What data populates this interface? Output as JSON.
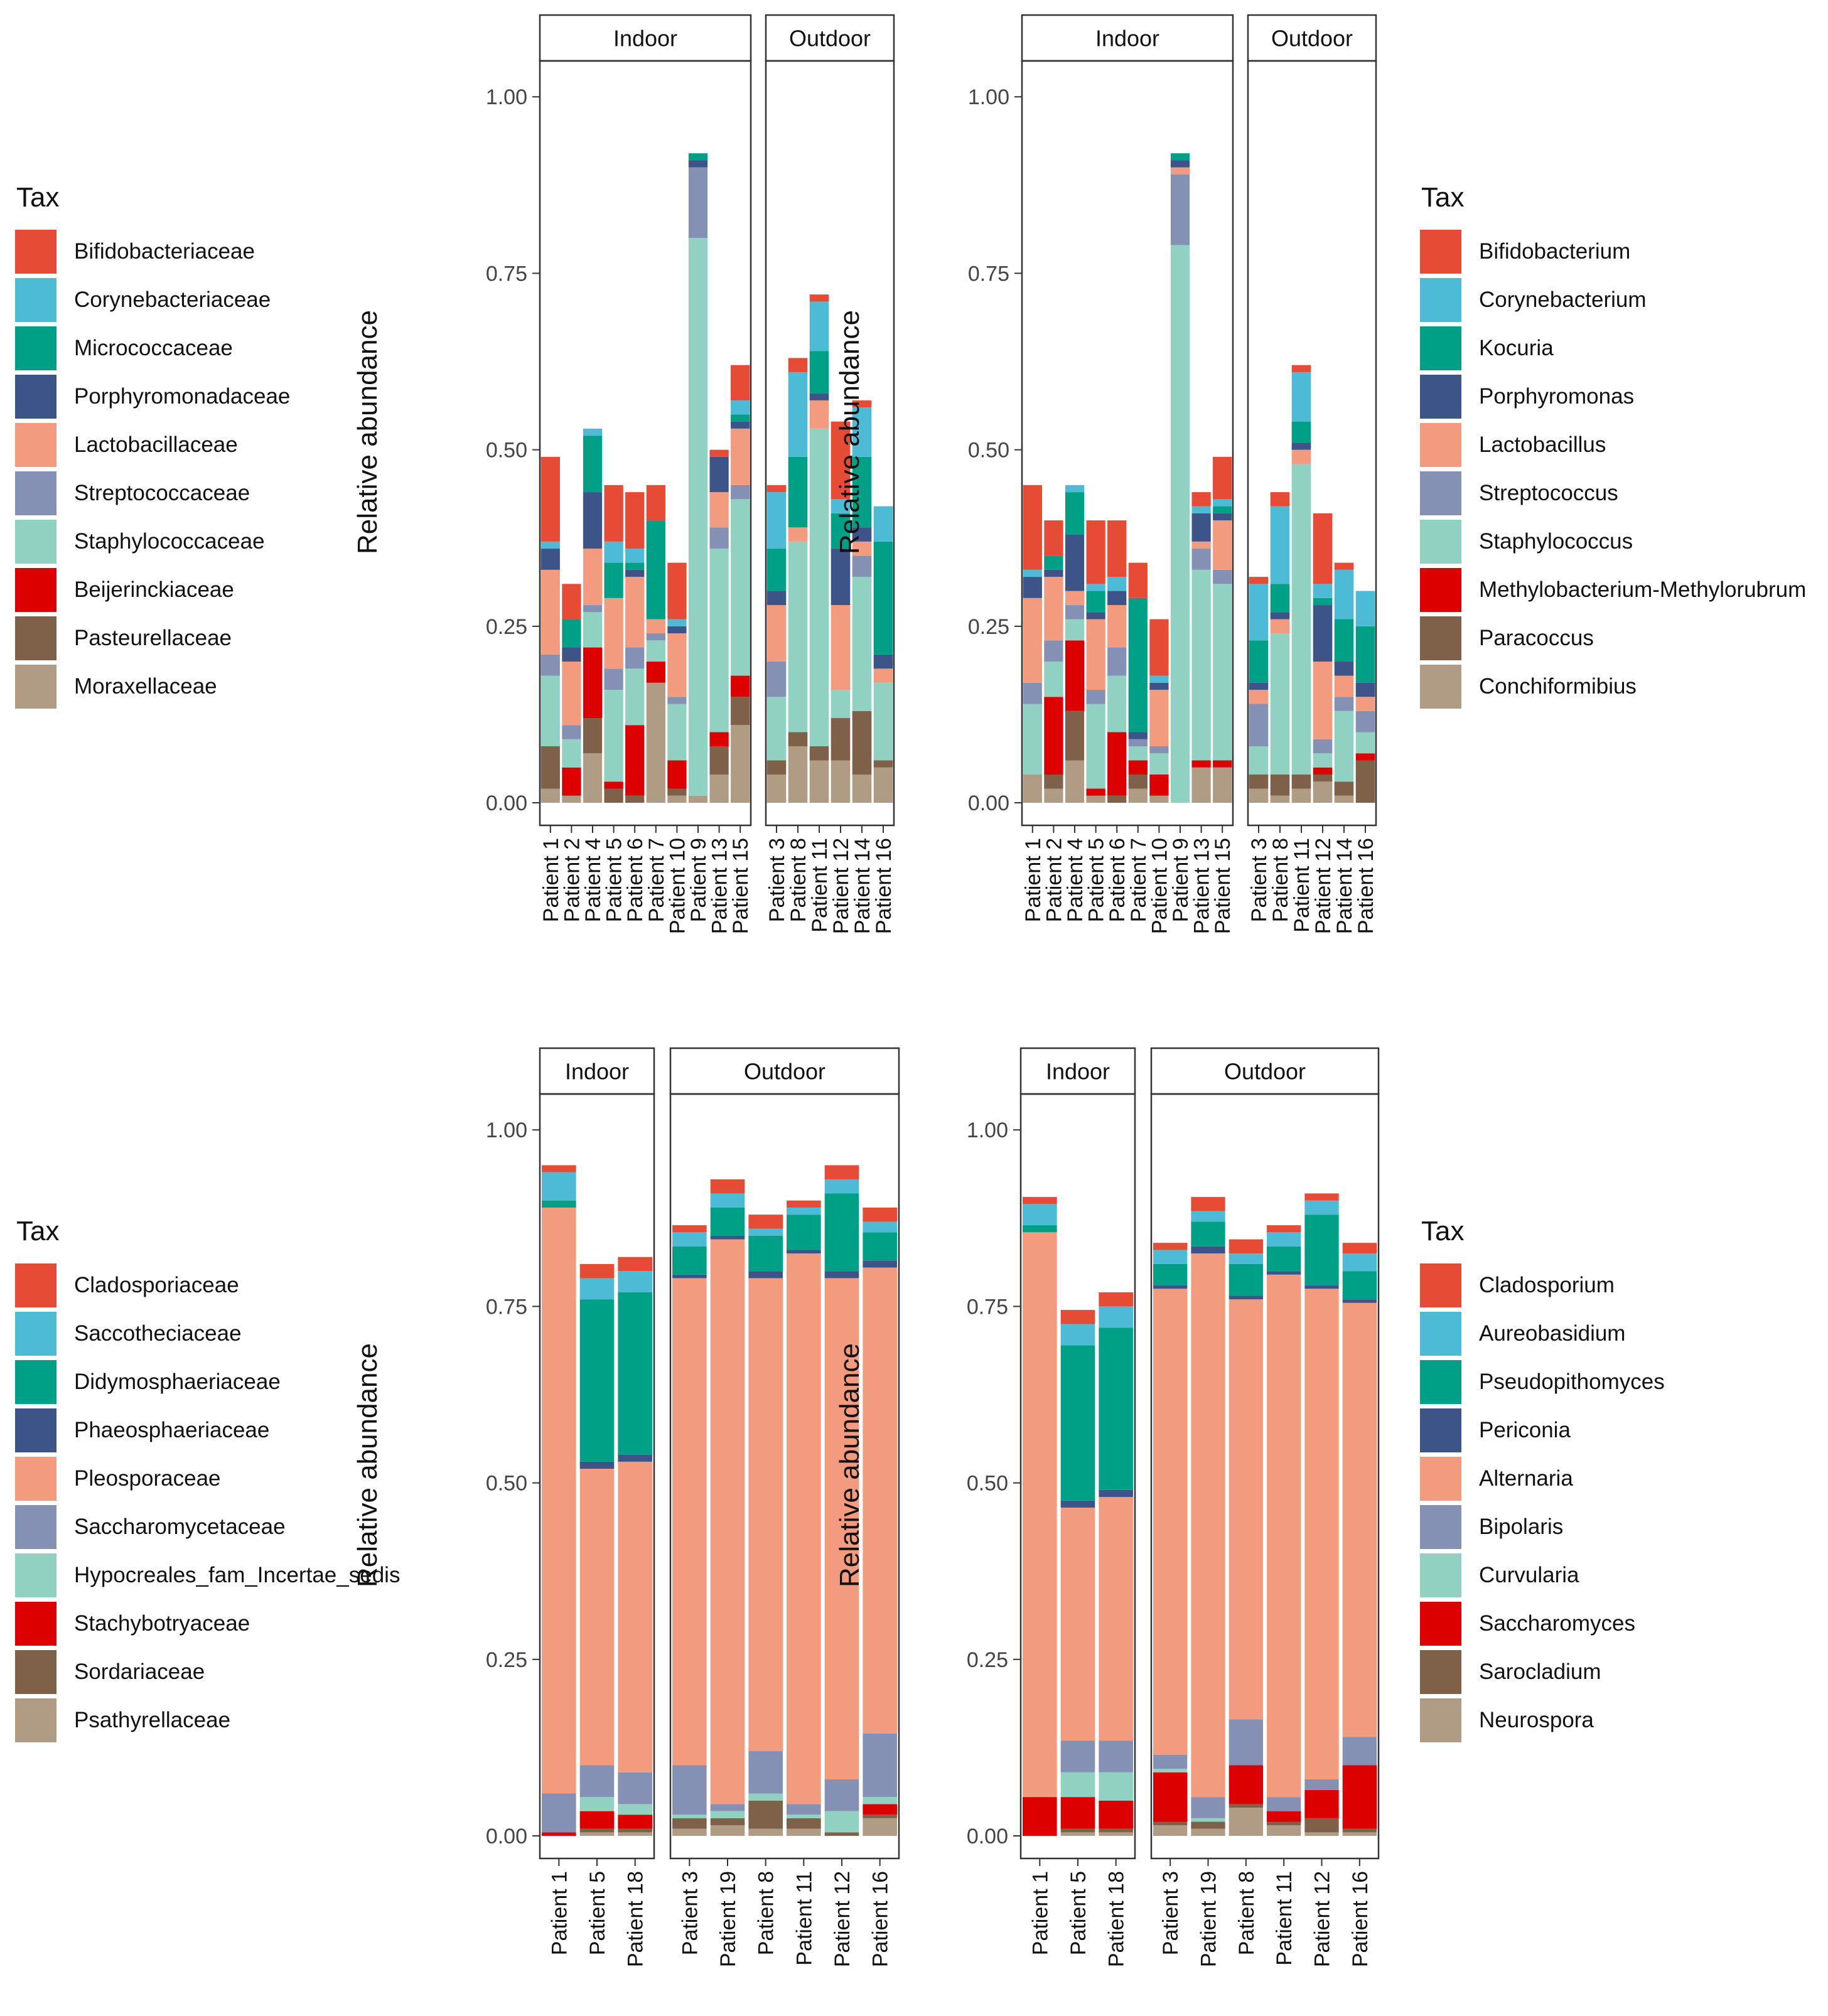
{
  "palette": [
    "#E64B35",
    "#4DBBD5",
    "#00A087",
    "#3C5488",
    "#F39B7F",
    "#8491B4",
    "#91D1C2",
    "#DC0000",
    "#7E6148",
    "#B09C85"
  ],
  "chart_data": [
    {
      "type": "bar",
      "stacked": true,
      "ylabel": "Relative abundance",
      "ylim": [
        0,
        1.05
      ],
      "yticks": [
        "0.00",
        "0.25",
        "0.50",
        "0.75",
        "1.00"
      ],
      "legend_title": "Tax",
      "legend_position": "left",
      "taxa": [
        "Bifidobacteriaceae",
        "Corynebacteriaceae",
        "Micrococcaceae",
        "Porphyromonadaceae",
        "Lactobacillaceae",
        "Streptococcaceae",
        "Staphylococcaceae",
        "Beijerinckiaceae",
        "Pasteurellaceae",
        "Moraxellaceae"
      ],
      "facets": [
        {
          "label": "Indoor",
          "categories": [
            "Patient 1",
            "Patient 2",
            "Patient 4",
            "Patient 5",
            "Patient 6",
            "Patient 7",
            "Patient 10",
            "Patient 9",
            "Patient 13",
            "Patient 15"
          ],
          "values": [
            [
              0.12,
              0.01,
              0.0,
              0.03,
              0.12,
              0.03,
              0.1,
              0.0,
              0.06,
              0.02
            ],
            [
              0.05,
              0.0,
              0.04,
              0.02,
              0.09,
              0.02,
              0.04,
              0.04,
              0.0,
              0.01
            ],
            [
              0.0,
              0.01,
              0.08,
              0.08,
              0.08,
              0.01,
              0.05,
              0.1,
              0.05,
              0.07
            ],
            [
              0.08,
              0.03,
              0.05,
              0.0,
              0.1,
              0.03,
              0.13,
              0.01,
              0.02,
              0.0
            ],
            [
              0.08,
              0.02,
              0.01,
              0.01,
              0.1,
              0.03,
              0.08,
              0.1,
              0.01,
              0.0
            ],
            [
              0.05,
              0.0,
              0.14,
              0.0,
              0.02,
              0.01,
              0.03,
              0.03,
              0.0,
              0.17
            ],
            [
              0.08,
              0.01,
              0.0,
              0.01,
              0.09,
              0.01,
              0.08,
              0.04,
              0.01,
              0.01
            ],
            [
              0.0,
              0.0,
              0.01,
              0.01,
              0.0,
              0.1,
              0.79,
              0.0,
              0.0,
              0.01
            ],
            [
              0.01,
              0.0,
              0.0,
              0.05,
              0.05,
              0.03,
              0.26,
              0.02,
              0.04,
              0.04
            ],
            [
              0.05,
              0.02,
              0.01,
              0.01,
              0.08,
              0.02,
              0.25,
              0.03,
              0.04,
              0.11
            ]
          ]
        },
        {
          "label": "Outdoor",
          "categories": [
            "Patient 3",
            "Patient 8",
            "Patient 11",
            "Patient 12",
            "Patient 14",
            "Patient 16"
          ],
          "values": [
            [
              0.01,
              0.08,
              0.06,
              0.02,
              0.08,
              0.05,
              0.09,
              0.0,
              0.02,
              0.04
            ],
            [
              0.02,
              0.12,
              0.1,
              0.0,
              0.02,
              0.0,
              0.27,
              0.0,
              0.02,
              0.08
            ],
            [
              0.01,
              0.07,
              0.06,
              0.01,
              0.04,
              0.0,
              0.45,
              0.0,
              0.02,
              0.06
            ],
            [
              0.11,
              0.02,
              0.05,
              0.08,
              0.12,
              0.0,
              0.04,
              0.0,
              0.06,
              0.06
            ],
            [
              0.01,
              0.07,
              0.1,
              0.02,
              0.02,
              0.03,
              0.19,
              0.0,
              0.09,
              0.04
            ],
            [
              0.0,
              0.05,
              0.16,
              0.02,
              0.02,
              0.0,
              0.11,
              0.0,
              0.01,
              0.05
            ]
          ]
        }
      ]
    },
    {
      "type": "bar",
      "stacked": true,
      "ylabel": "Relative abundance",
      "ylim": [
        0,
        1.05
      ],
      "yticks": [
        "0.00",
        "0.25",
        "0.50",
        "0.75",
        "1.00"
      ],
      "legend_title": "Tax",
      "legend_position": "right",
      "taxa": [
        "Bifidobacterium",
        "Corynebacterium",
        "Kocuria",
        "Porphyromonas",
        "Lactobacillus",
        "Streptococcus",
        "Staphylococcus",
        "Methylobacterium-Methylorubrum",
        "Paracoccus",
        "Conchiformibius"
      ],
      "facets": [
        {
          "label": "Indoor",
          "categories": [
            "Patient 1",
            "Patient 2",
            "Patient 4",
            "Patient 5",
            "Patient 6",
            "Patient 7",
            "Patient 10",
            "Patient 9",
            "Patient 13",
            "Patient 15"
          ],
          "values": [
            [
              0.12,
              0.01,
              0.0,
              0.03,
              0.12,
              0.03,
              0.1,
              0.0,
              0.0,
              0.04
            ],
            [
              0.05,
              0.0,
              0.02,
              0.01,
              0.09,
              0.03,
              0.05,
              0.11,
              0.02,
              0.02
            ],
            [
              0.0,
              0.01,
              0.06,
              0.08,
              0.02,
              0.02,
              0.03,
              0.1,
              0.07,
              0.06
            ],
            [
              0.09,
              0.01,
              0.03,
              0.01,
              0.1,
              0.02,
              0.12,
              0.01,
              0.0,
              0.01
            ],
            [
              0.08,
              0.02,
              0.0,
              0.02,
              0.06,
              0.04,
              0.08,
              0.09,
              0.01,
              0.0
            ],
            [
              0.05,
              0.0,
              0.19,
              0.01,
              0.0,
              0.01,
              0.02,
              0.02,
              0.02,
              0.02
            ],
            [
              0.08,
              0.01,
              0.0,
              0.01,
              0.08,
              0.01,
              0.03,
              0.03,
              0.0,
              0.01
            ],
            [
              0.0,
              0.0,
              0.01,
              0.01,
              0.01,
              0.1,
              0.79,
              0.0,
              0.0,
              0.0
            ],
            [
              0.02,
              0.01,
              0.0,
              0.04,
              0.01,
              0.03,
              0.27,
              0.01,
              0.0,
              0.05
            ],
            [
              0.06,
              0.01,
              0.01,
              0.01,
              0.07,
              0.02,
              0.25,
              0.01,
              0.0,
              0.05
            ]
          ]
        },
        {
          "label": "Outdoor",
          "categories": [
            "Patient 3",
            "Patient 8",
            "Patient 11",
            "Patient 12",
            "Patient 14",
            "Patient 16"
          ],
          "values": [
            [
              0.01,
              0.08,
              0.06,
              0.01,
              0.02,
              0.06,
              0.04,
              0.0,
              0.02,
              0.02
            ],
            [
              0.02,
              0.11,
              0.04,
              0.01,
              0.02,
              0.0,
              0.2,
              0.0,
              0.03,
              0.01
            ],
            [
              0.01,
              0.07,
              0.03,
              0.01,
              0.02,
              0.0,
              0.44,
              0.0,
              0.02,
              0.02
            ],
            [
              0.1,
              0.02,
              0.01,
              0.08,
              0.11,
              0.02,
              0.02,
              0.01,
              0.01,
              0.03
            ],
            [
              0.01,
              0.07,
              0.06,
              0.02,
              0.03,
              0.02,
              0.1,
              0.0,
              0.02,
              0.01
            ],
            [
              0.0,
              0.05,
              0.08,
              0.02,
              0.02,
              0.03,
              0.03,
              0.01,
              0.06,
              0.0
            ]
          ]
        }
      ]
    },
    {
      "type": "bar",
      "stacked": true,
      "ylabel": "Relative abundance",
      "ylim": [
        0,
        1.05
      ],
      "yticks": [
        "0.00",
        "0.25",
        "0.50",
        "0.75",
        "1.00"
      ],
      "legend_title": "Tax",
      "legend_position": "left",
      "taxa": [
        "Cladosporiaceae",
        "Saccotheciaceae",
        "Didymosphaeriaceae",
        "Phaeosphaeriaceae",
        "Pleosporaceae",
        "Saccharomycetaceae",
        "Hypocreales_fam_Incertae_sedis",
        "Stachybotryaceae",
        "Sordariaceae",
        "Psathyrellaceae"
      ],
      "facets": [
        {
          "label": "Indoor",
          "categories": [
            "Patient 1",
            "Patient 5",
            "Patient 18"
          ],
          "values": [
            [
              0.01,
              0.04,
              0.01,
              0.0,
              0.83,
              0.055,
              0.0,
              0.005,
              0.0,
              0.0
            ],
            [
              0.02,
              0.03,
              0.23,
              0.01,
              0.42,
              0.045,
              0.02,
              0.025,
              0.005,
              0.005
            ],
            [
              0.02,
              0.03,
              0.23,
              0.01,
              0.44,
              0.045,
              0.015,
              0.02,
              0.005,
              0.005
            ]
          ]
        },
        {
          "label": "Outdoor",
          "categories": [
            "Patient 3",
            "Patient 19",
            "Patient 8",
            "Patient 11",
            "Patient 12",
            "Patient 16"
          ],
          "values": [
            [
              0.01,
              0.02,
              0.04,
              0.005,
              0.69,
              0.07,
              0.005,
              0.0,
              0.015,
              0.01
            ],
            [
              0.02,
              0.02,
              0.04,
              0.005,
              0.8,
              0.01,
              0.01,
              0.0,
              0.01,
              0.015
            ],
            [
              0.02,
              0.01,
              0.05,
              0.01,
              0.67,
              0.06,
              0.01,
              0.0,
              0.04,
              0.01
            ],
            [
              0.01,
              0.01,
              0.05,
              0.005,
              0.78,
              0.015,
              0.005,
              0.0,
              0.015,
              0.01
            ],
            [
              0.02,
              0.02,
              0.11,
              0.01,
              0.71,
              0.045,
              0.03,
              0.0,
              0.005,
              0.0
            ],
            [
              0.02,
              0.015,
              0.04,
              0.01,
              0.66,
              0.09,
              0.01,
              0.015,
              0.005,
              0.025
            ]
          ]
        }
      ]
    },
    {
      "type": "bar",
      "stacked": true,
      "ylabel": "Relative abundance",
      "ylim": [
        0,
        1.05
      ],
      "yticks": [
        "0.00",
        "0.25",
        "0.50",
        "0.75",
        "1.00"
      ],
      "legend_title": "Tax",
      "legend_position": "right",
      "taxa": [
        "Cladosporium",
        "Aureobasidium",
        "Pseudopithomyces",
        "Periconia",
        "Alternaria",
        "Bipolaris",
        "Curvularia",
        "Saccharomyces",
        "Sarocladium",
        "Neurospora"
      ],
      "facets": [
        {
          "label": "Indoor",
          "categories": [
            "Patient 1",
            "Patient 5",
            "Patient 18"
          ],
          "values": [
            [
              0.01,
              0.03,
              0.01,
              0.0,
              0.8,
              0.0,
              0.0,
              0.055,
              0.0,
              0.0
            ],
            [
              0.02,
              0.03,
              0.22,
              0.01,
              0.33,
              0.045,
              0.035,
              0.045,
              0.005,
              0.005
            ],
            [
              0.02,
              0.03,
              0.23,
              0.01,
              0.345,
              0.045,
              0.04,
              0.04,
              0.005,
              0.005
            ]
          ]
        },
        {
          "label": "Outdoor",
          "categories": [
            "Patient 3",
            "Patient 19",
            "Patient 8",
            "Patient 11",
            "Patient 12",
            "Patient 16"
          ],
          "values": [
            [
              0.01,
              0.02,
              0.03,
              0.005,
              0.66,
              0.02,
              0.005,
              0.07,
              0.005,
              0.015
            ],
            [
              0.02,
              0.015,
              0.035,
              0.01,
              0.77,
              0.03,
              0.005,
              0.0,
              0.01,
              0.01
            ],
            [
              0.02,
              0.015,
              0.045,
              0.005,
              0.595,
              0.065,
              0.0,
              0.055,
              0.005,
              0.04
            ],
            [
              0.01,
              0.02,
              0.035,
              0.005,
              0.74,
              0.02,
              0.0,
              0.015,
              0.005,
              0.015
            ],
            [
              0.01,
              0.02,
              0.1,
              0.005,
              0.695,
              0.015,
              0.0,
              0.04,
              0.02,
              0.005
            ],
            [
              0.015,
              0.025,
              0.04,
              0.005,
              0.615,
              0.04,
              0.0,
              0.09,
              0.005,
              0.005
            ]
          ]
        }
      ]
    }
  ]
}
